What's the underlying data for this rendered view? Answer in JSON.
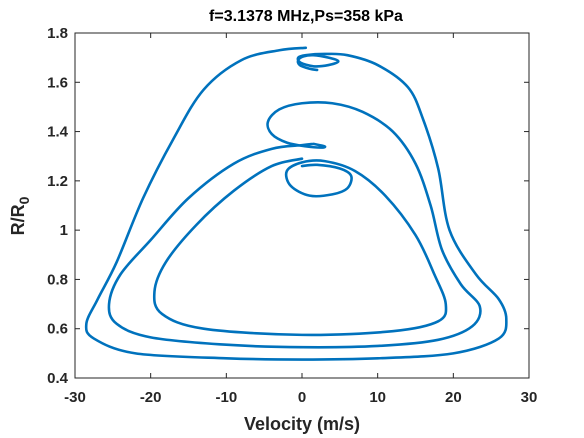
{
  "chart_data": {
    "type": "line",
    "title": "f=3.1378 MHz,Ps=358 kPa",
    "xlabel": "Velocity (m/s)",
    "ylabel_main": "R/R",
    "ylabel_sub": "0",
    "xlim": [
      -30,
      30
    ],
    "ylim": [
      0.4,
      1.8
    ],
    "xticks": [
      -30,
      -20,
      -10,
      0,
      10,
      20,
      30
    ],
    "xtick_labels": [
      "-30",
      "-20",
      "-10",
      "0",
      "10",
      "20",
      "30"
    ],
    "yticks": [
      0.4,
      0.6,
      0.8,
      1.0,
      1.2,
      1.4,
      1.6,
      1.8
    ],
    "ytick_labels": [
      "0.4",
      "0.6",
      "0.8",
      "1",
      "1.2",
      "1.4",
      "1.6",
      "1.8"
    ],
    "grid": false,
    "line_color": "#0072BD",
    "series": [
      {
        "points": [
          [
            0.5,
            1.74
          ],
          [
            -3,
            1.73
          ],
          [
            -8,
            1.69
          ],
          [
            -13,
            1.57
          ],
          [
            -17,
            1.37
          ],
          [
            -21,
            1.13
          ],
          [
            -24.5,
            0.87
          ],
          [
            -27,
            0.72
          ],
          [
            -28.5,
            0.62
          ],
          [
            -27.5,
            0.56
          ],
          [
            -22,
            0.5
          ],
          [
            -10,
            0.48
          ],
          [
            0,
            0.475
          ],
          [
            10,
            0.48
          ],
          [
            20,
            0.5
          ],
          [
            26,
            0.56
          ],
          [
            27,
            0.64
          ],
          [
            26,
            0.72
          ],
          [
            23,
            0.82
          ],
          [
            19.5,
            1.0
          ],
          [
            18,
            1.25
          ],
          [
            16,
            1.45
          ],
          [
            14,
            1.58
          ],
          [
            10,
            1.67
          ],
          [
            6,
            1.71
          ],
          [
            3,
            1.715
          ],
          [
            0.5,
            1.71
          ],
          [
            -0.5,
            1.7
          ],
          [
            -0.2,
            1.68
          ],
          [
            1.5,
            1.665
          ],
          [
            3.5,
            1.67
          ],
          [
            4.8,
            1.685
          ],
          [
            3.5,
            1.7
          ],
          [
            1.5,
            1.71
          ],
          [
            0.2,
            1.705
          ],
          [
            -0.5,
            1.69
          ],
          [
            -0.3,
            1.67
          ],
          [
            1,
            1.655
          ],
          [
            2,
            1.65
          ]
        ]
      },
      {
        "points": [
          [
            1.5,
            1.35
          ],
          [
            0,
            1.345
          ],
          [
            -4,
            1.33
          ],
          [
            -9,
            1.27
          ],
          [
            -15,
            1.13
          ],
          [
            -20,
            0.96
          ],
          [
            -24,
            0.82
          ],
          [
            -25.5,
            0.7
          ],
          [
            -24.5,
            0.62
          ],
          [
            -20,
            0.565
          ],
          [
            -10,
            0.535
          ],
          [
            0,
            0.525
          ],
          [
            10,
            0.53
          ],
          [
            18,
            0.555
          ],
          [
            22.5,
            0.61
          ],
          [
            23.5,
            0.69
          ],
          [
            21,
            0.78
          ],
          [
            18.5,
            0.92
          ],
          [
            17,
            1.1
          ],
          [
            15,
            1.27
          ],
          [
            12,
            1.4
          ],
          [
            8,
            1.48
          ],
          [
            4,
            1.515
          ],
          [
            0,
            1.515
          ],
          [
            -3,
            1.49
          ],
          [
            -4.5,
            1.44
          ],
          [
            -4,
            1.39
          ],
          [
            -2,
            1.355
          ],
          [
            0.5,
            1.34
          ],
          [
            2.5,
            1.335
          ],
          [
            3,
            1.34
          ],
          [
            1.5,
            1.35
          ]
        ]
      },
      {
        "points": [
          [
            0,
            1.29
          ],
          [
            -4,
            1.26
          ],
          [
            -9,
            1.16
          ],
          [
            -14,
            1.02
          ],
          [
            -18,
            0.87
          ],
          [
            -19.5,
            0.75
          ],
          [
            -18.5,
            0.66
          ],
          [
            -13,
            0.6
          ],
          [
            0,
            0.575
          ],
          [
            12,
            0.59
          ],
          [
            18,
            0.63
          ],
          [
            19,
            0.7
          ],
          [
            17.5,
            0.82
          ],
          [
            15,
            0.98
          ],
          [
            11,
            1.14
          ],
          [
            7,
            1.24
          ],
          [
            3,
            1.28
          ],
          [
            0,
            1.275
          ],
          [
            -2,
            1.24
          ],
          [
            -1.5,
            1.18
          ],
          [
            1,
            1.14
          ],
          [
            4,
            1.145
          ],
          [
            6,
            1.17
          ],
          [
            6.5,
            1.22
          ],
          [
            5,
            1.25
          ],
          [
            2,
            1.265
          ],
          [
            0,
            1.26
          ]
        ]
      }
    ]
  }
}
